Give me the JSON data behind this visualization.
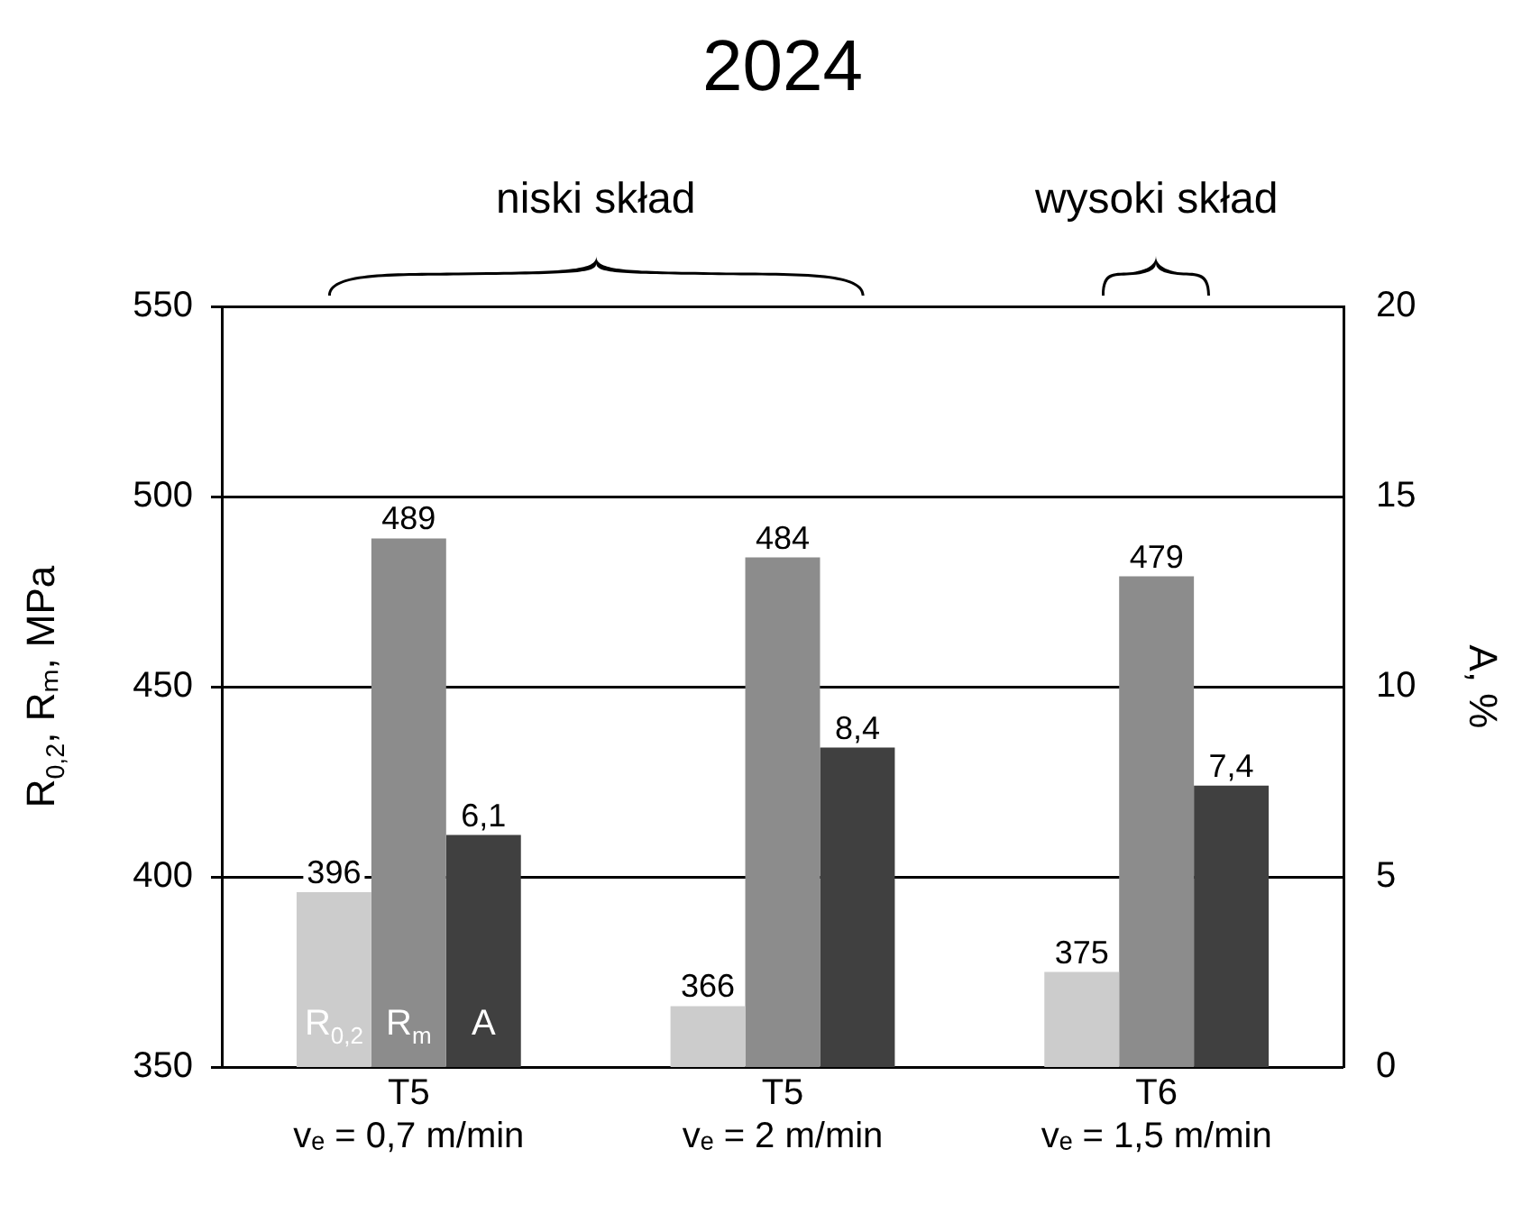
{
  "chart_data": {
    "type": "bar",
    "title": "2024",
    "ylabel": "R$_{0,2}$, Rₘ, MPa",
    "y2label": "A, %",
    "annotations": [
      "niski skład",
      "wysoki skład"
    ],
    "categories": [
      "T5\nvₑ = 0,7 m/min",
      "T5\nvₑ = 2 m/min",
      "T6\nvₑ = 1,5 m/min"
    ],
    "series": [
      {
        "name": "R$_{0,2}$",
        "color": "#cccccc",
        "values": [
          396,
          366,
          375
        ],
        "value_labels": [
          "396",
          "366",
          "375"
        ]
      },
      {
        "name": "R$_{m}$",
        "color": "#8c8c8c",
        "values": [
          489,
          484,
          479
        ],
        "value_labels": [
          "489",
          "484",
          "479"
        ]
      },
      {
        "name": "A",
        "color": "#404040",
        "axis": "y2",
        "values": [
          6.1,
          8.4,
          7.4
        ],
        "value_labels": [
          "6,1",
          "8,4",
          "7,4"
        ]
      }
    ],
    "ylim": [
      350,
      550
    ],
    "yticks": [
      350,
      400,
      450,
      500,
      550
    ],
    "y2lim": [
      0,
      20
    ],
    "y2ticks": [
      0,
      5,
      10,
      15,
      20
    ],
    "grid": "y",
    "legend": false
  }
}
